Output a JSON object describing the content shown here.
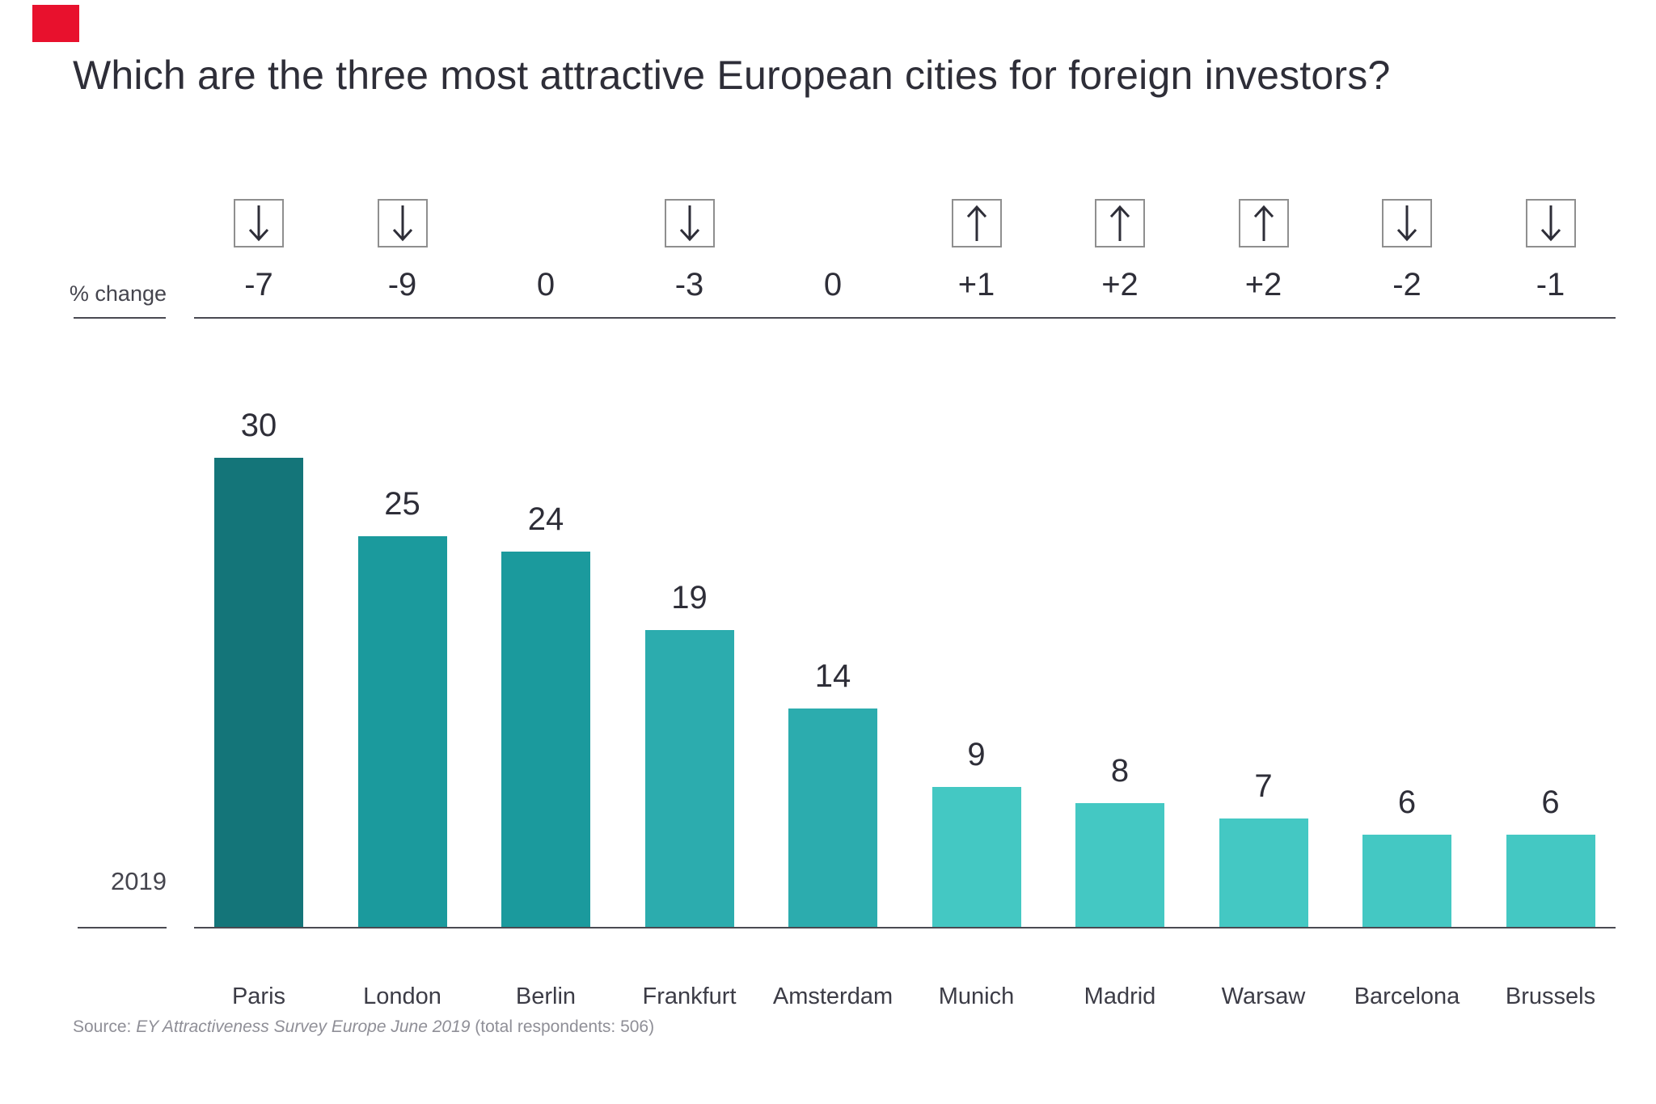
{
  "accent_square_color": "#e8112d",
  "chart_data": {
    "type": "bar",
    "title": "Which are the three most attractive European cities for foreign investors?",
    "categories": [
      "Paris",
      "London",
      "Berlin",
      "Frankfurt",
      "Amsterdam",
      "Munich",
      "Madrid",
      "Warsaw",
      "Barcelona",
      "Brussels"
    ],
    "values": [
      30,
      25,
      24,
      19,
      14,
      9,
      8,
      7,
      6,
      6
    ],
    "pct_change": [
      "-7",
      "-9",
      "0",
      "-3",
      "0",
      "+1",
      "+2",
      "+2",
      "-2",
      "-1"
    ],
    "arrow_directions": [
      "down",
      "down",
      "none",
      "down",
      "none",
      "up",
      "up",
      "up",
      "down",
      "down"
    ],
    "bar_colors": [
      "#147579",
      "#1b9a9d",
      "#1b9a9d",
      "#2cacae",
      "#2cacae",
      "#44c8c3",
      "#44c8c3",
      "#44c8c3",
      "#44c8c3",
      "#44c8c3"
    ],
    "row_label_pct_change": "% change",
    "row_label_year": "2019",
    "xlabel": "",
    "ylabel": "",
    "ylim": [
      0,
      30
    ],
    "grid": false,
    "legend": "none",
    "value_labels_shown": true,
    "arrow_color": "#2e2e38"
  },
  "source": {
    "prefix": "Source: ",
    "italic": "EY Attractiveness Survey Europe June 2019",
    "suffix": " (total respondents: 506)"
  }
}
